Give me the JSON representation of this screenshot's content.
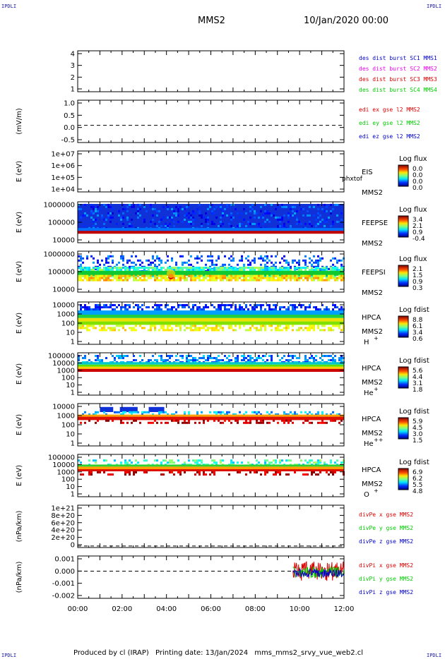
{
  "header": {
    "corner_label": "IPDLI",
    "title": "MMS2",
    "date": "10/Jan/2020 00:00"
  },
  "footer": {
    "produced_by": "Produced by cl (IRAP)",
    "printing_date": "Printing date: 13/Jan/2024",
    "script_name": "mms_mms2_srvy_vue_web2.cl"
  },
  "colors": {
    "blue": "#0000cc",
    "magenta": "#ee00ee",
    "red": "#dd0000",
    "green": "#00cc00"
  },
  "chart_data": {
    "type": "multi-panel time series",
    "x_ticks": [
      "00:00",
      "02:00",
      "04:00",
      "06:00",
      "08:00",
      "10:00",
      "12:00"
    ],
    "x_range_hours": [
      0,
      12
    ],
    "panels": [
      {
        "id": "burst",
        "type": "line",
        "ylabel": "",
        "ylim": [
          0.6,
          4.6
        ],
        "yticks": [
          "1",
          "2",
          "3",
          "4"
        ],
        "legend": [
          {
            "text": "des dist burst SC1 MMS1",
            "color": "#0000cc"
          },
          {
            "text": "des dist burst SC2 MMS2",
            "color": "#ee00ee"
          },
          {
            "text": "des dist burst SC3 MMS3",
            "color": "#dd0000"
          },
          {
            "text": "des dist burst SC4 MMS4",
            "color": "#00cc00"
          }
        ],
        "series": []
      },
      {
        "id": "edi",
        "type": "line",
        "ylabel": "(mV/m)",
        "ylim": [
          -0.75,
          1.1
        ],
        "yticks": [
          "-0.5",
          "0.0",
          "0.5",
          "1.0"
        ],
        "zero_line": 0,
        "legend": [
          {
            "text": "edi ex gse l2 MMS2",
            "color": "#dd0000"
          },
          {
            "text": "edi ey gse l2 MMS2",
            "color": "#00cc00"
          },
          {
            "text": "edi ez gse l2 MMS2",
            "color": "#0000cc"
          }
        ],
        "series": []
      },
      {
        "id": "eis",
        "type": "heatmap",
        "ylabel": "E (eV)",
        "yticks": [
          "1e+04",
          "1e+05",
          "1e+06",
          "1e+07"
        ],
        "side_labels": [
          "EIS",
          "MMS2"
        ],
        "overlay_label": "phxtof",
        "colorbar": {
          "title": "Log flux",
          "ticks": [
            "0.0",
            "0.0",
            "0.0",
            "0.0"
          ]
        },
        "data": "empty"
      },
      {
        "id": "feeps_e",
        "type": "heatmap",
        "ylabel": "E (eV)",
        "yticks": [
          "10000",
          "100000",
          "1000000"
        ],
        "side_labels": [
          "FEEPSE",
          "MMS2"
        ],
        "colorbar": {
          "title": "Log flux",
          "ticks": [
            "3.4",
            "2.1",
            "0.9",
            "-0.4"
          ]
        },
        "data": "continuous high flux at 30-60 keV, low flux above"
      },
      {
        "id": "feeps_i",
        "type": "heatmap",
        "ylabel": "E (eV)",
        "yticks": [
          "10000",
          "100000",
          "1000000"
        ],
        "side_labels": [
          "FEEPSI",
          "MMS2"
        ],
        "colorbar": {
          "title": "Log flux",
          "ticks": [
            "2.1",
            "1.5",
            "0.9",
            "0.3"
          ]
        },
        "data": "mid flux 40-100 keV, speckle above, spot near 04:00"
      },
      {
        "id": "hpca_h",
        "type": "heatmap",
        "ylabel": "E (eV)",
        "yticks": [
          "1",
          "10",
          "100",
          "1000",
          "10000"
        ],
        "side_labels": [
          "HPCA",
          "MMS2",
          "H+"
        ],
        "colorbar": {
          "title": "Log fdist",
          "ticks": [
            "8.8",
            "6.1",
            "3.4",
            "0.6"
          ]
        },
        "data": "peak ~1-5 keV, blue band ~10 keV"
      },
      {
        "id": "hpca_he1",
        "type": "heatmap",
        "ylabel": "E (eV)",
        "yticks": [
          "1",
          "10",
          "100",
          "1000",
          "10000",
          "100000"
        ],
        "side_labels": [
          "HPCA",
          "MMS2",
          "He+"
        ],
        "colorbar": {
          "title": "Log fdist",
          "ticks": [
            "5.6",
            "4.4",
            "3.1",
            "1.8"
          ]
        },
        "data": "red ~1 keV, green/blue 3-10 keV"
      },
      {
        "id": "hpca_he2",
        "type": "heatmap",
        "ylabel": "E (eV)",
        "yticks": [
          "1",
          "10",
          "100",
          "1000",
          "10000"
        ],
        "side_labels": [
          "HPCA",
          "MMS2",
          "He++"
        ],
        "colorbar": {
          "title": "Log fdist",
          "ticks": [
            "5.9",
            "4.5",
            "3.0",
            "1.5"
          ]
        },
        "data": "red ~1 keV, blue blocks ~5 keV 01:00-04:30"
      },
      {
        "id": "hpca_o",
        "type": "heatmap",
        "ylabel": "E (eV)",
        "yticks": [
          "1",
          "10",
          "100",
          "1000",
          "10000",
          "100000"
        ],
        "side_labels": [
          "HPCA",
          "MMS2",
          "O+"
        ],
        "colorbar": {
          "title": "Log fdist",
          "ticks": [
            "6.9",
            "6.2",
            "5.5",
            "4.8"
          ]
        },
        "data": "red ~1 keV, green ~2 keV"
      },
      {
        "id": "divpe",
        "type": "line",
        "ylabel": "(nPa/km)",
        "ylim": [
          -4e+19,
          1.08e+21
        ],
        "yticks": [
          "0",
          "2e+20",
          "4e+20",
          "6e+20",
          "8e+20",
          "1e+21"
        ],
        "zero_line": 0,
        "legend": [
          {
            "text": "divPe x gse MMS2",
            "color": "#dd0000"
          },
          {
            "text": "divPe y gse MMS2",
            "color": "#00cc00"
          },
          {
            "text": "divPe z gse MMS2",
            "color": "#0000cc"
          }
        ],
        "series": []
      },
      {
        "id": "divpi",
        "type": "line",
        "ylabel": "(nPa/km)",
        "ylim": [
          -0.0025,
          0.0014
        ],
        "yticks": [
          "-0.002",
          "-0.001",
          "0.000",
          "0.001"
        ],
        "zero_line": 0,
        "legend": [
          {
            "text": "divPi x gse MMS2",
            "color": "#dd0000"
          },
          {
            "text": "divPi y gse MMS2",
            "color": "#00cc00"
          },
          {
            "text": "divPi z gse MMS2",
            "color": "#0000cc"
          }
        ],
        "series": [
          {
            "name": "divPi x gse MMS2",
            "x_range": [
              9.7,
              12.0
            ],
            "amplitude": 0.0009,
            "color": "#dd0000"
          },
          {
            "name": "divPi y gse MMS2",
            "x_range": [
              9.7,
              12.0
            ],
            "amplitude": 0.0005,
            "color": "#00cc00"
          },
          {
            "name": "divPi z gse MMS2",
            "x_range": [
              9.7,
              12.0
            ],
            "amplitude": 0.0004,
            "color": "#0000cc"
          }
        ]
      }
    ]
  }
}
